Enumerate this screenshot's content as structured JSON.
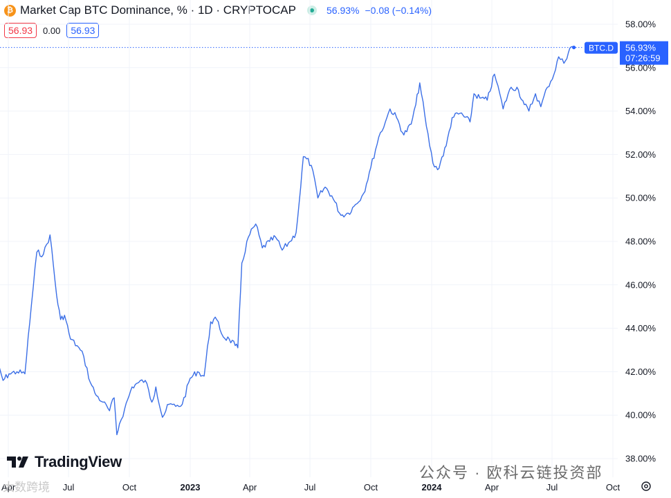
{
  "header": {
    "symbol_icon": "bitcoin-icon",
    "title": "Market Cap BTC Dominance, % · 1D · CRYPTOCAP",
    "last_value": "56.93%",
    "change": "−0.08 (−0.14%)",
    "ohlc_boxes": {
      "left": "56.93",
      "middle": "0.00",
      "right": "56.93"
    }
  },
  "price_label": {
    "ticker": "BTC.D",
    "value": "56.93%",
    "countdown": "07:26:59"
  },
  "branding": {
    "logo": "TradingView"
  },
  "watermark": {
    "left": "大数跨境",
    "right": "公众号 · 欧科云链投资部"
  },
  "colors": {
    "line": "#3a6ee6",
    "accent": "#2962ff",
    "negative": "#f23645",
    "btc": "#f7931a"
  },
  "chart_data": {
    "type": "line",
    "series": [
      {
        "x": [
          "2022-03-10",
          "2022-03-24",
          "2022-04-02",
          "2022-04-14",
          "2022-04-26",
          "2022-05-06",
          "2022-05-14",
          "2022-05-24",
          "2022-06-03",
          "2022-06-13",
          "2022-06-19",
          "2022-06-25",
          "2022-07-04",
          "2022-07-14",
          "2022-07-24",
          "2022-08-03",
          "2022-08-12",
          "2022-08-22",
          "2022-09-01",
          "2022-09-08",
          "2022-09-12",
          "2022-09-16",
          "2022-09-24",
          "2022-10-05",
          "2022-10-15",
          "2022-10-25",
          "2022-11-04",
          "2022-11-10",
          "2022-11-20",
          "2022-11-30",
          "2022-12-10",
          "2022-12-20",
          "2023-01-01",
          "2023-01-12",
          "2023-01-22",
          "2023-02-01",
          "2023-02-10",
          "2023-02-20",
          "2023-03-01",
          "2023-03-10",
          "2023-03-14",
          "2023-03-20",
          "2023-03-30",
          "2023-04-10",
          "2023-04-20",
          "2023-05-01",
          "2023-05-10",
          "2023-05-20",
          "2023-06-01",
          "2023-06-10",
          "2023-06-17",
          "2023-06-21",
          "2023-06-26",
          "2023-07-03",
          "2023-07-13",
          "2023-07-24",
          "2023-08-03",
          "2023-08-17",
          "2023-08-28",
          "2023-09-08",
          "2023-09-20",
          "2023-10-01",
          "2023-10-13",
          "2023-10-23",
          "2023-10-30",
          "2023-11-09",
          "2023-11-20",
          "2023-12-01",
          "2023-12-08",
          "2023-12-14",
          "2023-12-24",
          "2024-01-03",
          "2024-01-10",
          "2024-01-23",
          "2024-02-01",
          "2024-02-13",
          "2024-02-28",
          "2024-03-05",
          "2024-03-14",
          "2024-03-25",
          "2024-04-05",
          "2024-04-13",
          "2024-04-18",
          "2024-04-28",
          "2024-05-09",
          "2024-05-20",
          "2024-05-27",
          "2024-06-06",
          "2024-06-14",
          "2024-06-24",
          "2024-07-04",
          "2024-07-11",
          "2024-07-19",
          "2024-07-28",
          "2024-08-03"
        ],
        "values": [
          42.9,
          41.6,
          41.9,
          42.0,
          41.9,
          45.1,
          47.5,
          47.4,
          48.3,
          45.5,
          44.4,
          44.6,
          43.5,
          43.2,
          42.7,
          41.5,
          40.9,
          40.6,
          40.2,
          40.8,
          39.1,
          39.6,
          40.3,
          41.3,
          41.5,
          41.6,
          40.6,
          41.3,
          39.9,
          40.5,
          40.4,
          40.5,
          41.7,
          42.0,
          41.8,
          44.3,
          44.4,
          43.6,
          43.5,
          43.2,
          43.1,
          47.0,
          48.2,
          48.8,
          47.7,
          48.0,
          48.2,
          47.6,
          48.0,
          48.4,
          50.5,
          51.9,
          51.8,
          51.5,
          50.0,
          50.5,
          50.1,
          49.2,
          49.3,
          49.7,
          50.2,
          51.4,
          52.8,
          53.5,
          54.1,
          53.7,
          52.9,
          53.4,
          54.3,
          55.3,
          53.3,
          51.6,
          51.3,
          52.4,
          53.7,
          53.9,
          53.5,
          54.8,
          54.6,
          54.5,
          55.7,
          54.8,
          54.1,
          55.0,
          55.1,
          54.3,
          54.0,
          54.8,
          54.2,
          55.1,
          55.7,
          56.5,
          56.2,
          56.9,
          56.93
        ]
      }
    ],
    "ylim": [
      37.5,
      58.5
    ],
    "y_ticks": [
      "58.00%",
      "56.00%",
      "54.00%",
      "52.00%",
      "50.00%",
      "48.00%",
      "46.00%",
      "44.00%",
      "42.00%",
      "40.00%",
      "38.00%"
    ],
    "x_ticks": [
      {
        "label": "Apr",
        "date": "2022-04-01",
        "bold": false
      },
      {
        "label": "Jul",
        "date": "2022-07-01",
        "bold": false
      },
      {
        "label": "Oct",
        "date": "2022-10-01",
        "bold": false
      },
      {
        "label": "2023",
        "date": "2023-01-01",
        "bold": true
      },
      {
        "label": "Apr",
        "date": "2023-04-01",
        "bold": false
      },
      {
        "label": "Jul",
        "date": "2023-07-01",
        "bold": false
      },
      {
        "label": "Oct",
        "date": "2023-10-01",
        "bold": false
      },
      {
        "label": "2024",
        "date": "2024-01-01",
        "bold": true
      },
      {
        "label": "Apr",
        "date": "2024-04-01",
        "bold": false
      },
      {
        "label": "Jul",
        "date": "2024-07-01",
        "bold": false
      },
      {
        "label": "Oct",
        "date": "2024-10-01",
        "bold": false
      }
    ],
    "grid": true,
    "xlabel": "",
    "ylabel": ""
  }
}
